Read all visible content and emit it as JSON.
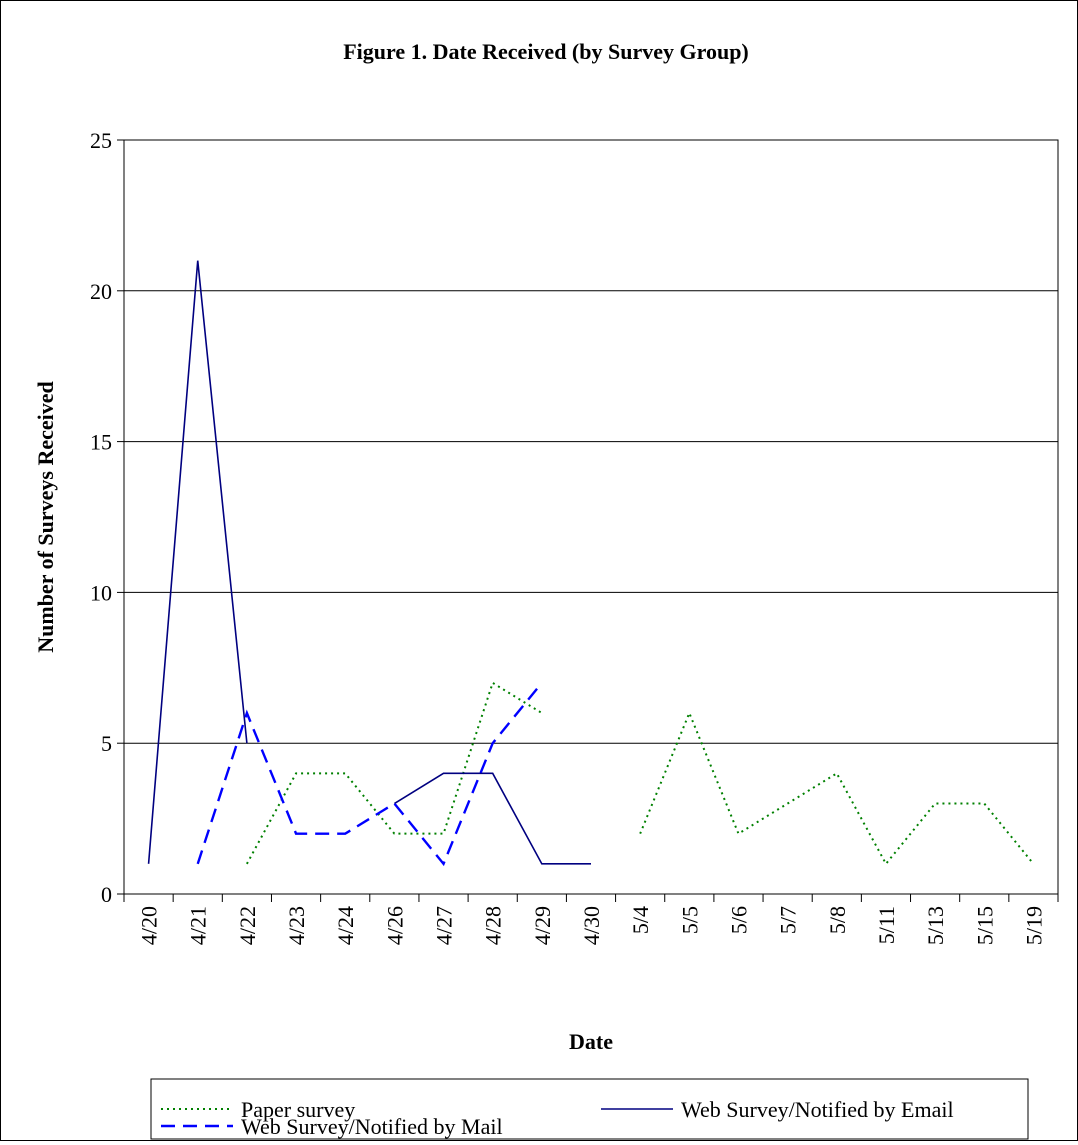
{
  "chart_data": {
    "type": "line",
    "title": "Figure 1.  Date Received (by Survey Group)",
    "xlabel": "Date",
    "ylabel": "Number of Surveys Received",
    "ylim": [
      0,
      25
    ],
    "yticks": [
      "0",
      "5",
      "10",
      "15",
      "20",
      "25"
    ],
    "grid": "horizontal",
    "legend_position": "bottom",
    "categories": [
      "4/20",
      "4/21",
      "4/22",
      "4/23",
      "4/24",
      "4/26",
      "4/27",
      "4/28",
      "4/29",
      "4/30",
      "5/4",
      "5/5",
      "5/6",
      "5/7",
      "5/8",
      "5/11",
      "5/13",
      "5/15",
      "5/19"
    ],
    "series": [
      {
        "name": "Paper survey",
        "color": "#008000",
        "style": "dotted",
        "values": [
          null,
          null,
          1,
          4,
          4,
          2,
          2,
          7,
          6,
          null,
          2,
          6,
          2,
          3,
          4,
          1,
          3,
          3,
          1
        ]
      },
      {
        "name": "Web Survey/Notified by Email",
        "color": "#000080",
        "style": "solid",
        "values": [
          1,
          21,
          5,
          null,
          null,
          3,
          4,
          4,
          1,
          1,
          null,
          null,
          null,
          null,
          null,
          null,
          null,
          null,
          null
        ]
      },
      {
        "name": "Web Survey/Notified by Mail",
        "color": "#0000FF",
        "style": "dashed",
        "values": [
          null,
          1,
          6,
          2,
          2,
          3,
          1,
          5,
          7,
          null,
          null,
          null,
          null,
          null,
          null,
          null,
          null,
          null,
          null
        ]
      }
    ]
  }
}
